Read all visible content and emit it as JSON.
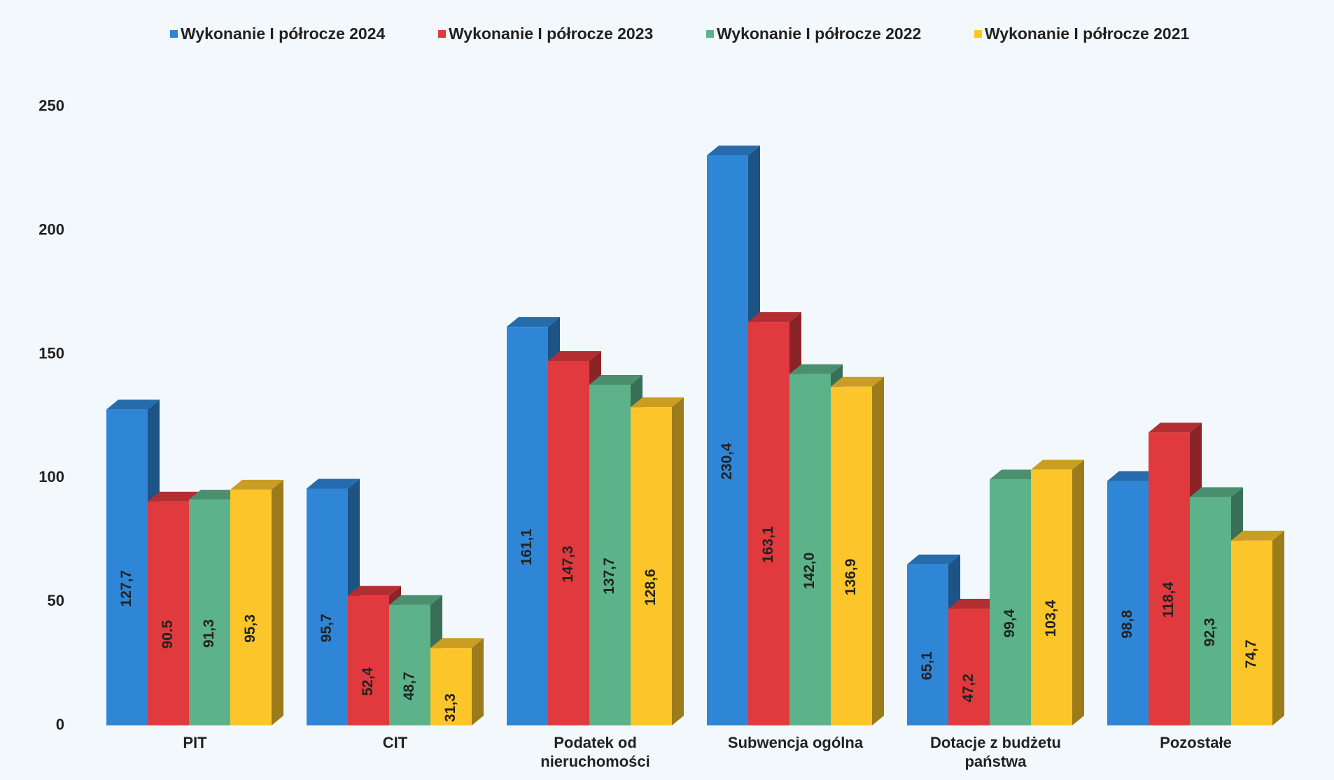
{
  "chart_data": {
    "type": "bar3d",
    "categories": [
      "PIT",
      "CIT",
      "Podatek od nieruchomości",
      "Subwencja ogólna",
      "Dotacje z budżetu państwa",
      "Pozostałe"
    ],
    "series": [
      {
        "name": "Wykonanie I półrocze 2024",
        "color": "#2f86d6",
        "values": [
          127.7,
          95.7,
          161.1,
          230.4,
          65.1,
          98.8
        ],
        "value_labels": [
          "127,7",
          "95,7",
          "161,1",
          "230,4",
          "65,1",
          "98,8"
        ]
      },
      {
        "name": "Wykonanie I półrocze 2023",
        "color": "#e03a3e",
        "values": [
          90.5,
          52.4,
          147.3,
          163.1,
          47.2,
          118.4
        ],
        "value_labels": [
          "90.5",
          "52,4",
          "147,3",
          "163,1",
          "47,2",
          "118,4"
        ]
      },
      {
        "name": "Wykonanie I półrocze 2022",
        "color": "#5cb38a",
        "values": [
          91.3,
          48.7,
          137.7,
          142.0,
          99.4,
          92.3
        ],
        "value_labels": [
          "91,3",
          "48,7",
          "137,7",
          "142,0",
          "99,4",
          "92,3"
        ]
      },
      {
        "name": "Wykonanie I półrocze 2021",
        "color": "#fcc62a",
        "values": [
          95.3,
          31.3,
          128.6,
          136.9,
          103.4,
          74.7
        ],
        "value_labels": [
          "95,3",
          "31,3",
          "128,6",
          "136,9",
          "103,4",
          "74,7"
        ]
      }
    ],
    "ylim": [
      0,
      270
    ],
    "yticks": [
      0,
      50,
      100,
      150,
      200,
      250
    ],
    "legend": "top"
  }
}
